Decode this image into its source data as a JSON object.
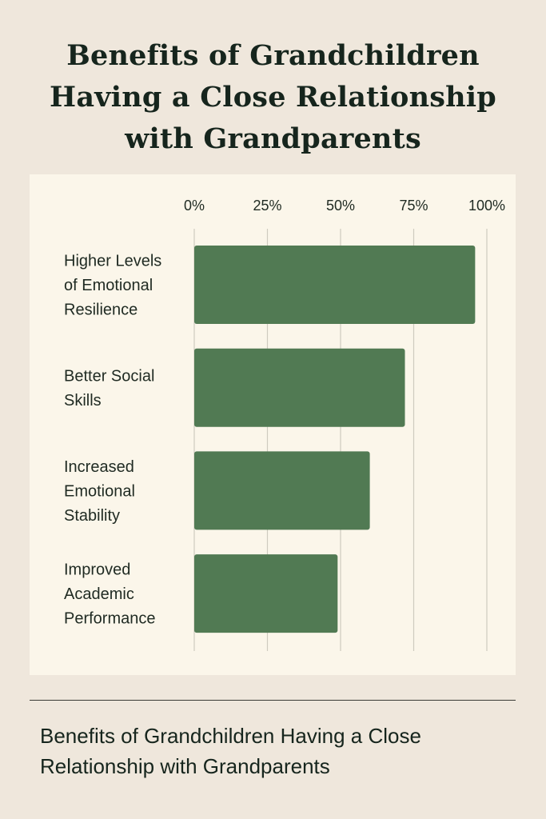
{
  "title": "Benefits of Grandchildren Having a Close Relationship with Grandparents",
  "caption": "Benefits of Grandchildren Having a Close Relationship with Grandparents",
  "colors": {
    "background": "#efe7dc",
    "panel": "#fbf6ea",
    "bar": "#517a53",
    "grid": "#cfcbbf",
    "text": "#1f2a22"
  },
  "chart_data": {
    "type": "bar",
    "orientation": "horizontal",
    "title": "Benefits of Grandchildren Having a Close Relationship with Grandparents",
    "xlabel": "",
    "ylabel": "",
    "xlim": [
      0,
      100
    ],
    "x_ticks": [
      "0%",
      "25%",
      "50%",
      "75%",
      "100%"
    ],
    "x_tick_values": [
      0,
      25,
      50,
      75,
      100
    ],
    "grid": true,
    "categories": [
      "Higher Levels of Emotional Resilience",
      "Better Social Skills",
      "Increased Emotional Stability",
      "Improved Academic Performance"
    ],
    "category_lines": [
      [
        "Higher Levels",
        "of Emotional",
        "Resilience"
      ],
      [
        "Better Social",
        "Skills"
      ],
      [
        "Increased",
        "Emotional",
        "Stability"
      ],
      [
        "Improved",
        "Academic",
        "Performance"
      ]
    ],
    "values": [
      96,
      72,
      60,
      49
    ]
  }
}
